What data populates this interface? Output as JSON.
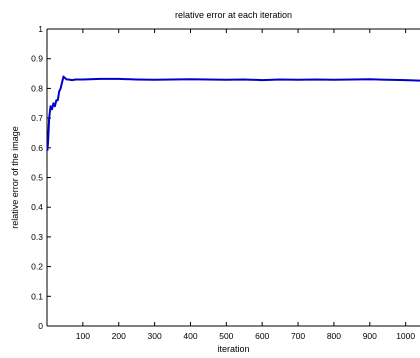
{
  "chart_data": {
    "type": "line",
    "title": "relative error at each iteration",
    "xlabel": "iteration",
    "ylabel": "relative error of the image",
    "xlim": [
      0,
      1040
    ],
    "ylim": [
      0,
      1
    ],
    "xticks": [
      100,
      200,
      300,
      400,
      500,
      600,
      700,
      800,
      900,
      1000
    ],
    "yticks": [
      0,
      0.1,
      0.2,
      0.3,
      0.4,
      0.5,
      0.6,
      0.7,
      0.8,
      0.9,
      1
    ],
    "xtick_labels": [
      "100",
      "200",
      "300",
      "400",
      "500",
      "600",
      "700",
      "800",
      "900",
      "1000"
    ],
    "ytick_labels": [
      "0",
      "0.1",
      "0.2",
      "0.3",
      "0.4",
      "0.5",
      "0.6",
      "0.7",
      "0.8",
      "0.9",
      "1"
    ],
    "grid": false,
    "series": [
      {
        "color": "#0000cc",
        "x": [
          1,
          3,
          6,
          10,
          14,
          18,
          22,
          26,
          30,
          34,
          38,
          42,
          46,
          50,
          55,
          60,
          70,
          80,
          100,
          150,
          200,
          250,
          300,
          350,
          400,
          450,
          500,
          550,
          600,
          650,
          700,
          750,
          800,
          850,
          900,
          950,
          1000,
          1040
        ],
        "y": [
          0.59,
          0.62,
          0.7,
          0.74,
          0.73,
          0.75,
          0.74,
          0.76,
          0.76,
          0.79,
          0.8,
          0.82,
          0.84,
          0.835,
          0.83,
          0.83,
          0.828,
          0.83,
          0.83,
          0.832,
          0.832,
          0.83,
          0.829,
          0.83,
          0.831,
          0.83,
          0.829,
          0.83,
          0.828,
          0.83,
          0.829,
          0.83,
          0.829,
          0.83,
          0.831,
          0.829,
          0.828,
          0.826
        ]
      }
    ]
  }
}
